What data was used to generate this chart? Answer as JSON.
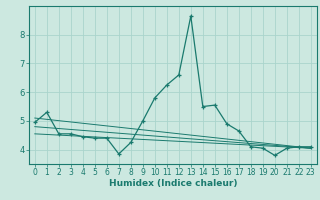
{
  "xlabel": "Humidex (Indice chaleur)",
  "background_color": "#cce8e0",
  "grid_color": "#aad4cc",
  "line_color": "#1a7a6e",
  "xlim": [
    -0.5,
    23.5
  ],
  "ylim": [
    3.5,
    9.0
  ],
  "yticks": [
    4,
    5,
    6,
    7,
    8
  ],
  "xticks": [
    0,
    1,
    2,
    3,
    4,
    5,
    6,
    7,
    8,
    9,
    10,
    11,
    12,
    13,
    14,
    15,
    16,
    17,
    18,
    19,
    20,
    21,
    22,
    23
  ],
  "series": [
    [
      0,
      4.95
    ],
    [
      1,
      5.3
    ],
    [
      2,
      4.55
    ],
    [
      3,
      4.55
    ],
    [
      4,
      4.45
    ],
    [
      5,
      4.4
    ],
    [
      6,
      4.4
    ],
    [
      7,
      3.85
    ],
    [
      8,
      4.25
    ],
    [
      9,
      5.0
    ],
    [
      10,
      5.8
    ],
    [
      11,
      6.25
    ],
    [
      12,
      6.6
    ],
    [
      13,
      8.65
    ],
    [
      14,
      5.5
    ],
    [
      15,
      5.55
    ],
    [
      16,
      4.9
    ],
    [
      17,
      4.65
    ],
    [
      18,
      4.1
    ],
    [
      19,
      4.05
    ],
    [
      20,
      3.8
    ],
    [
      21,
      4.05
    ],
    [
      22,
      4.1
    ],
    [
      23,
      4.1
    ]
  ],
  "extra_lines": [
    {
      "x": [
        0,
        23
      ],
      "y": [
        5.1,
        4.05
      ]
    },
    {
      "x": [
        0,
        23
      ],
      "y": [
        4.8,
        4.05
      ]
    },
    {
      "x": [
        0,
        23
      ],
      "y": [
        4.55,
        4.05
      ]
    }
  ],
  "tick_fontsize": 5.5,
  "xlabel_fontsize": 6.5
}
